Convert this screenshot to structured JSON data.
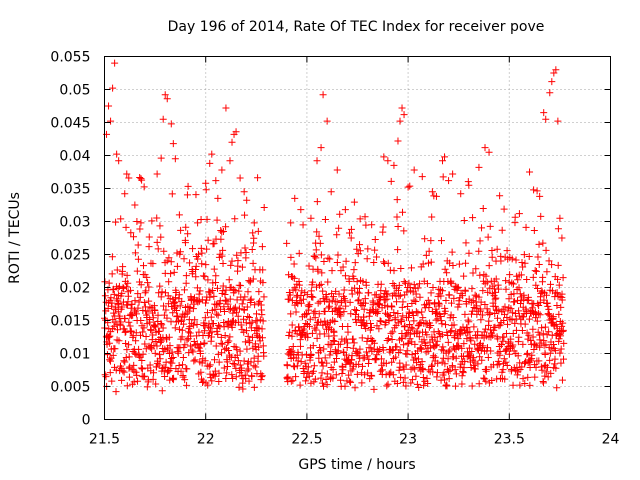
{
  "chart_data": {
    "type": "scatter",
    "title": "Day 196 of 2014, Rate Of TEC Index for receiver pove",
    "xlabel": "GPS time / hours",
    "ylabel": "ROTI / TECUs",
    "xlim": [
      21.5,
      24
    ],
    "ylim": [
      0,
      0.055
    ],
    "x_ticks": [
      "21.5",
      "22",
      "22.5",
      "23",
      "23.5",
      "24"
    ],
    "y_ticks": [
      "0",
      "0.005",
      "0.01",
      "0.015",
      "0.02",
      "0.025",
      "0.03",
      "0.035",
      "0.04",
      "0.045",
      "0.05",
      "0.055"
    ],
    "x_tick_values": [
      21.5,
      22,
      22.5,
      23,
      23.5,
      24
    ],
    "y_tick_values": [
      0,
      0.005,
      0.01,
      0.015,
      0.02,
      0.025,
      0.03,
      0.035,
      0.04,
      0.045,
      0.05,
      0.055
    ],
    "grid": true,
    "marker": "+",
    "color": "#ff0000",
    "series": [
      {
        "name": "ROTI",
        "segments": [
          {
            "x_start": 21.5,
            "x_end": 22.29
          },
          {
            "x_start": 22.4,
            "x_end": 23.77
          }
        ],
        "points": [
          [
            21.51,
            0.0432
          ],
          [
            21.52,
            0.0475
          ],
          [
            21.53,
            0.0452
          ],
          [
            21.54,
            0.0502
          ],
          [
            21.55,
            0.054
          ],
          [
            21.56,
            0.0402
          ],
          [
            21.57,
            0.0392
          ],
          [
            21.58,
            0.0304
          ],
          [
            21.6,
            0.0342
          ],
          [
            21.61,
            0.0372
          ],
          [
            21.62,
            0.0366
          ],
          [
            21.63,
            0.0283
          ],
          [
            21.65,
            0.0325
          ],
          [
            21.68,
            0.0298
          ],
          [
            21.72,
            0.0262
          ],
          [
            21.76,
            0.0372
          ],
          [
            21.78,
            0.0396
          ],
          [
            21.79,
            0.0455
          ],
          [
            21.8,
            0.0492
          ],
          [
            21.81,
            0.0486
          ],
          [
            21.83,
            0.0448
          ],
          [
            21.84,
            0.0418
          ],
          [
            21.85,
            0.0395
          ],
          [
            21.87,
            0.031
          ],
          [
            21.9,
            0.0268
          ],
          [
            21.96,
            0.0298
          ],
          [
            22.0,
            0.0358
          ],
          [
            22.02,
            0.0388
          ],
          [
            22.03,
            0.0402
          ],
          [
            22.05,
            0.0362
          ],
          [
            22.06,
            0.0335
          ],
          [
            22.08,
            0.0378
          ],
          [
            22.1,
            0.0472
          ],
          [
            22.12,
            0.0392
          ],
          [
            22.13,
            0.042
          ],
          [
            22.14,
            0.0432
          ],
          [
            22.15,
            0.0436
          ],
          [
            22.17,
            0.0366
          ],
          [
            22.19,
            0.0345
          ],
          [
            22.24,
            0.0298
          ],
          [
            22.26,
            0.0285
          ],
          [
            22.28,
            0.0262
          ],
          [
            22.42,
            0.0298
          ],
          [
            22.44,
            0.0335
          ],
          [
            22.47,
            0.0318
          ],
          [
            22.52,
            0.0305
          ],
          [
            22.55,
            0.0392
          ],
          [
            22.57,
            0.0412
          ],
          [
            22.58,
            0.0492
          ],
          [
            22.6,
            0.0452
          ],
          [
            22.62,
            0.0345
          ],
          [
            22.65,
            0.0378
          ],
          [
            22.69,
            0.0318
          ],
          [
            22.72,
            0.0288
          ],
          [
            22.76,
            0.0265
          ],
          [
            22.82,
            0.0295
          ],
          [
            22.88,
            0.0398
          ],
          [
            22.9,
            0.0392
          ],
          [
            22.93,
            0.0385
          ],
          [
            22.95,
            0.0422
          ],
          [
            22.96,
            0.0452
          ],
          [
            22.97,
            0.0472
          ],
          [
            22.98,
            0.0462
          ],
          [
            23.0,
            0.0352
          ],
          [
            23.03,
            0.0378
          ],
          [
            23.07,
            0.0368
          ],
          [
            23.12,
            0.0345
          ],
          [
            23.14,
            0.0338
          ],
          [
            23.17,
            0.0392
          ],
          [
            23.18,
            0.0398
          ],
          [
            23.2,
            0.0362
          ],
          [
            23.22,
            0.0372
          ],
          [
            23.26,
            0.0342
          ],
          [
            23.3,
            0.0355
          ],
          [
            23.35,
            0.0382
          ],
          [
            23.38,
            0.0412
          ],
          [
            23.4,
            0.0405
          ],
          [
            23.44,
            0.0258
          ],
          [
            23.55,
            0.0312
          ],
          [
            23.6,
            0.0375
          ],
          [
            23.62,
            0.0348
          ],
          [
            23.65,
            0.0338
          ],
          [
            23.67,
            0.0465
          ],
          [
            23.68,
            0.0455
          ],
          [
            23.7,
            0.0495
          ],
          [
            23.71,
            0.0512
          ],
          [
            23.72,
            0.0525
          ],
          [
            23.73,
            0.053
          ],
          [
            23.74,
            0.0452
          ],
          [
            23.75,
            0.0305
          ],
          [
            23.76,
            0.0275
          ]
        ]
      }
    ]
  }
}
